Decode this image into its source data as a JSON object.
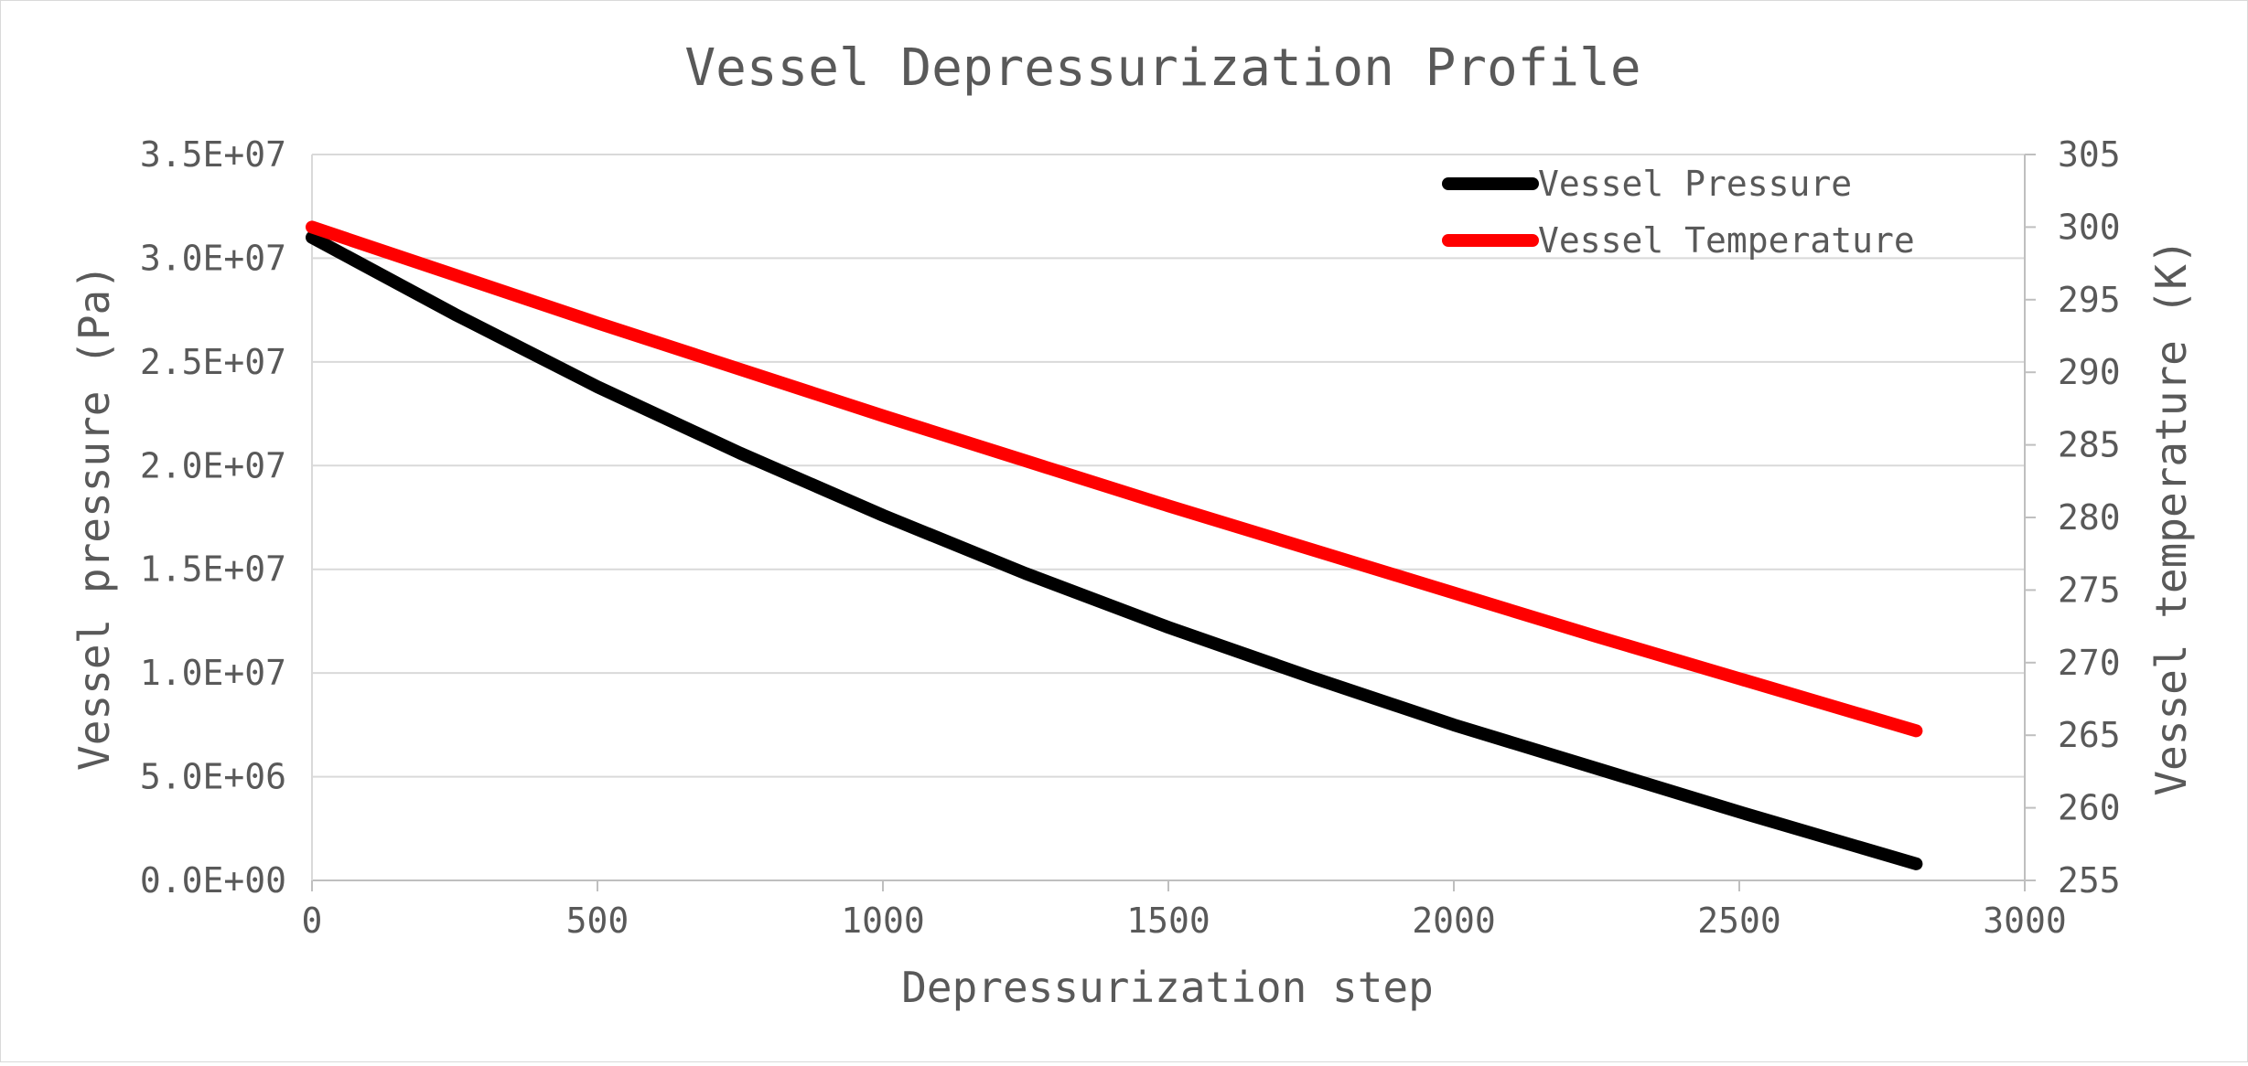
{
  "chart_data": {
    "type": "line",
    "title": "Vessel Depressurization Profile",
    "xlabel": "Depressurization step",
    "ylabel": "Vessel pressure (Pa)",
    "y2label": "Vessel temperature (K)",
    "xlim": [
      0,
      3000
    ],
    "ylim": [
      0,
      35000000
    ],
    "y2lim": [
      255,
      305
    ],
    "x_ticks": [
      "0",
      "500",
      "1000",
      "1500",
      "2000",
      "2500",
      "3000"
    ],
    "y_ticks": [
      "0.0E+00",
      "5.0E+06",
      "1.0E+07",
      "1.5E+07",
      "2.0E+07",
      "2.5E+07",
      "3.0E+07",
      "3.5E+07"
    ],
    "y2_ticks": [
      "255",
      "260",
      "265",
      "270",
      "275",
      "280",
      "285",
      "290",
      "295",
      "300",
      "305"
    ],
    "grid": true,
    "legend_position": "top-right",
    "series": [
      {
        "name": "Vessel Pressure",
        "axis": "left",
        "color": "#000000",
        "x": [
          0,
          250,
          500,
          750,
          1000,
          1250,
          1500,
          1750,
          2000,
          2250,
          2500,
          2810
        ],
        "y": [
          31000000,
          27300000,
          23800000,
          20600000,
          17600000,
          14800000,
          12200000,
          9800000,
          7500000,
          5400000,
          3300000,
          800000
        ]
      },
      {
        "name": "Vessel Temperature",
        "axis": "right",
        "color": "#ff0000",
        "x": [
          0,
          250,
          500,
          750,
          1000,
          1250,
          1500,
          1750,
          2000,
          2250,
          2500,
          2810
        ],
        "y": [
          300,
          296.7,
          293.4,
          290.2,
          287.0,
          283.9,
          280.8,
          277.8,
          274.8,
          271.8,
          268.9,
          265.3
        ]
      }
    ]
  }
}
